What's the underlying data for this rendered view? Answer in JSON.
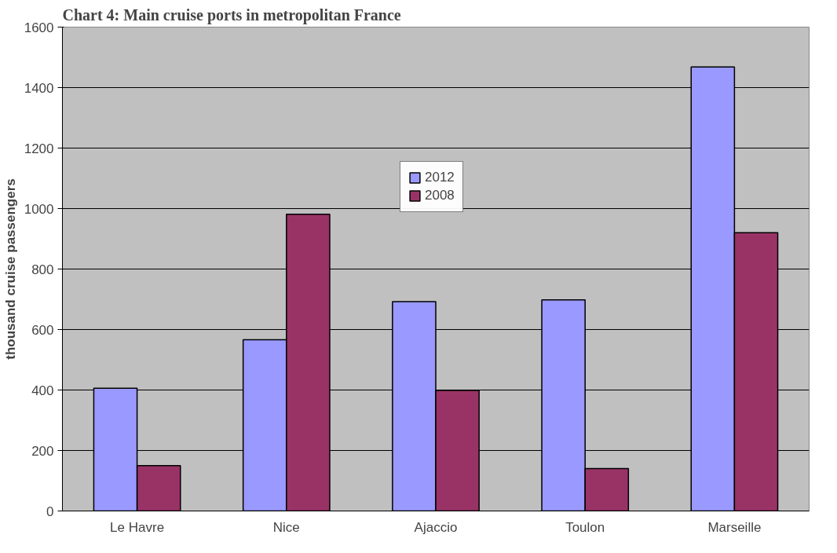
{
  "chart_data": {
    "type": "bar",
    "title": "Chart 4: Main cruise ports in metropolitan France",
    "ylabel": "thousand cruise passengers",
    "categories": [
      "Le Havre",
      "Nice",
      "Ajaccio",
      "Toulon",
      "Marseille"
    ],
    "series": [
      {
        "name": "2012",
        "color": "#9999ff",
        "values": [
          406,
          566,
          692,
          698,
          1468
        ]
      },
      {
        "name": "2008",
        "color": "#993366",
        "values": [
          150,
          981,
          399,
          140,
          920
        ]
      }
    ],
    "ylim": [
      0,
      1600
    ],
    "yticks": [
      0,
      200,
      400,
      600,
      800,
      1000,
      1200,
      1400,
      1600
    ],
    "grid": "y",
    "legend": "top"
  }
}
